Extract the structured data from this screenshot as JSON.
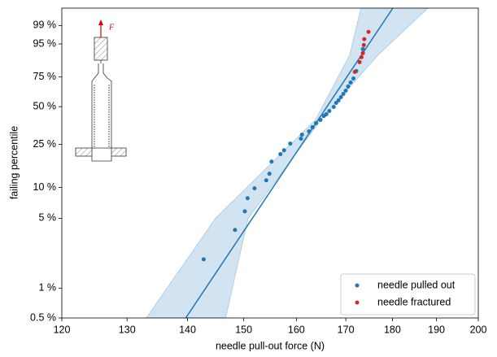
{
  "chart_data": {
    "type": "scatter",
    "xlabel": "needle pull-out force (N)",
    "ylabel": "failing percentile",
    "xscale": "log",
    "yscale": "weibull",
    "xlim": [
      120,
      200
    ],
    "xticks": [
      120,
      130,
      140,
      150,
      160,
      170,
      180,
      190,
      200
    ],
    "ylim": [
      0.5,
      99.9
    ],
    "yticks": [
      {
        "value": 0.5,
        "label": "0.5 %"
      },
      {
        "value": 1,
        "label": "1 %"
      },
      {
        "value": 5,
        "label": "5 %"
      },
      {
        "value": 10,
        "label": "10 %"
      },
      {
        "value": 25,
        "label": "25 %"
      },
      {
        "value": 50,
        "label": "50 %"
      },
      {
        "value": 75,
        "label": "75 %"
      },
      {
        "value": 95,
        "label": "95 %"
      },
      {
        "value": 99,
        "label": "99 %"
      }
    ],
    "legend": "lower right",
    "inset_label": "F",
    "fit": {
      "color": "#1f77b4",
      "x": [
        139.7,
        180.1
      ],
      "y": [
        0.5,
        99.9
      ]
    },
    "band": {
      "color": "#a6c8e4",
      "y": [
        0.5,
        5,
        40,
        90,
        99.9
      ],
      "lower_x": [
        133.1,
        144.9,
        163.8,
        170.8,
        173.2
      ],
      "upper_x": [
        146.7,
        150.8,
        164.9,
        176.8,
        188.0
      ]
    },
    "series": [
      {
        "name": "needle pulled out",
        "color": "#1f77b4",
        "x": [
          142.8,
          148.4,
          150.2,
          150.7,
          152.0,
          154.2,
          154.8,
          155.2,
          156.9,
          157.6,
          158.8,
          160.9,
          161.1,
          162.5,
          163.2,
          163.9,
          164.8,
          165.5,
          166.0,
          166.6,
          167.5,
          168.0,
          168.5,
          169.0,
          169.5,
          170.0,
          170.5,
          171.0,
          171.6,
          172.2,
          173.6
        ],
        "values": [
          1.95,
          3.83,
          5.86,
          7.87,
          9.79,
          11.7,
          13.5,
          17.5,
          20.5,
          22.2,
          25.4,
          28.0,
          30.3,
          32.3,
          34.9,
          37.6,
          39.9,
          42.8,
          44.1,
          46.6,
          49.8,
          53.1,
          55.2,
          57.9,
          60.7,
          63.5,
          67.0,
          70.4,
          73.8,
          79.6,
          93.0
        ]
      },
      {
        "name": "needle fractured",
        "color": "#d62728",
        "x": [
          171.9,
          172.9,
          173.3,
          173.6,
          173.8,
          173.9,
          174.8
        ],
        "values": [
          79.0,
          85.9,
          88.9,
          91.1,
          94.6,
          96.5,
          98.1
        ]
      }
    ]
  }
}
